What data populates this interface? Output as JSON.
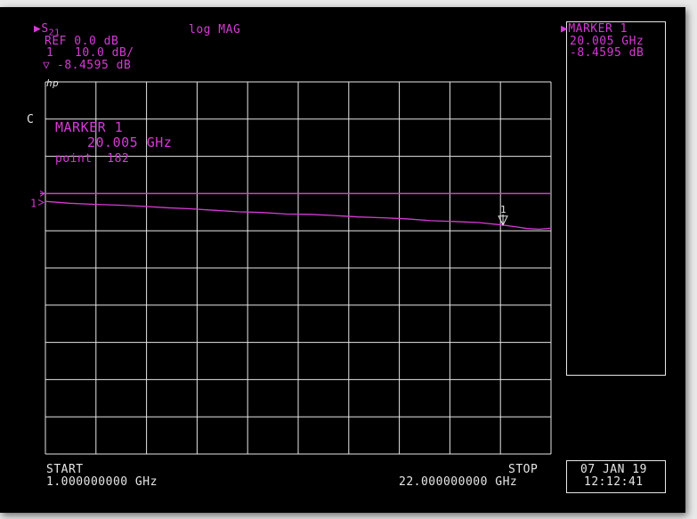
{
  "header": {
    "param_arrow": "▶",
    "param_main": "S",
    "param_sub": "21",
    "format": "log MAG",
    "ref": "REF 0.0 dB",
    "channel": "1",
    "scale": "10.0 dB/",
    "marker_symbol": "▽",
    "marker_value": "-8.4595 dB",
    "hp_logo": "hp",
    "c_flag": "C"
  },
  "marker_panel": {
    "arrow": "▶",
    "title": "MARKER 1",
    "freq": "20.005 GHz",
    "value": "-8.4595 dB"
  },
  "annotation": {
    "title": "MARKER 1",
    "freq": "20.005 GHz",
    "point": "point  182"
  },
  "footer": {
    "start_label": "START",
    "start_value": "1.000000000 GHz",
    "stop_label": "STOP",
    "stop_value": "22.000000000 GHz",
    "date": "07 JAN 19",
    "time": "12:12:41"
  },
  "chart_data": {
    "type": "line",
    "x_unit": "GHz",
    "y_unit": "dB",
    "xlim": [
      1.0,
      22.0
    ],
    "ylim": [
      -70.0,
      30.0
    ],
    "grid": true,
    "reference_level": 0.0,
    "reference_label": "1",
    "trace_color": "#d63ad6",
    "series": [
      {
        "x": [
          1.0,
          2.0,
          3.0,
          4.0,
          5.0,
          6.0,
          7.0,
          8.0,
          9.0,
          10.0,
          11.0,
          12.0,
          13.0,
          14.0,
          15.0,
          16.0,
          17.0,
          18.0,
          19.0,
          20.0,
          20.5,
          21.0,
          21.5,
          22.0
        ],
        "y": [
          -2.1,
          -2.6,
          -2.9,
          -3.1,
          -3.4,
          -3.8,
          -4.1,
          -4.5,
          -4.9,
          -5.1,
          -5.5,
          -5.6,
          -5.9,
          -6.3,
          -6.5,
          -6.8,
          -7.3,
          -7.5,
          -7.8,
          -8.46,
          -8.9,
          -9.4,
          -9.6,
          -9.3
        ]
      }
    ],
    "marker": {
      "label": "1",
      "x": 20.005,
      "y": -8.4595
    }
  }
}
